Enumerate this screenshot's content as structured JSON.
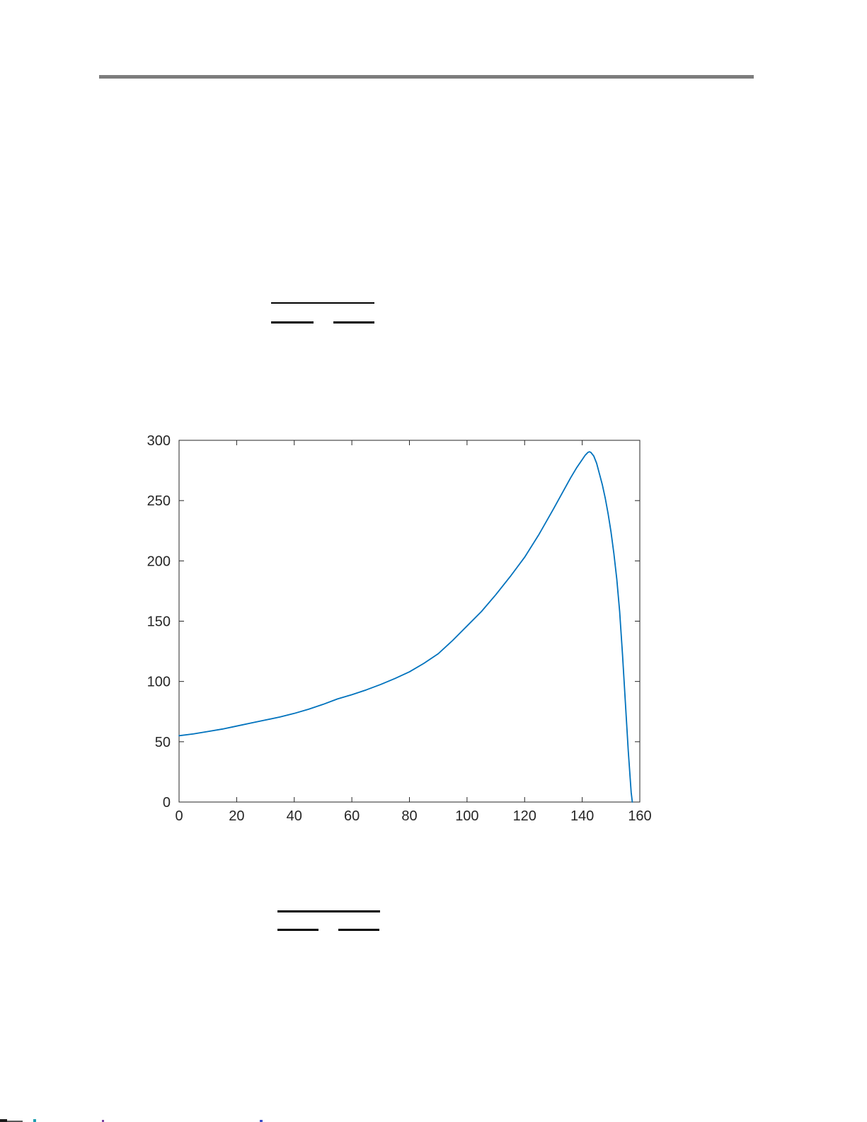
{
  "document": {
    "background_color": "#ffffff",
    "top_rule_color": "#7d7d7d"
  },
  "chart_data": {
    "type": "line",
    "title": "",
    "xlabel": "",
    "ylabel": "",
    "xlim": [
      0,
      160
    ],
    "ylim": [
      0,
      300
    ],
    "x_ticks": [
      0,
      20,
      40,
      60,
      80,
      100,
      120,
      140,
      160
    ],
    "y_ticks": [
      0,
      50,
      100,
      150,
      200,
      250,
      300
    ],
    "grid": false,
    "box": true,
    "legend": null,
    "line_color": "#0072BD",
    "axis_color": "#262626",
    "tick_label_color": "#262626",
    "series": [
      {
        "x": [
          0,
          5,
          10,
          15,
          20,
          25,
          30,
          35,
          40,
          45,
          50,
          55,
          60,
          65,
          70,
          75,
          80,
          85,
          90,
          95,
          100,
          105,
          110,
          115,
          120,
          125,
          130,
          133,
          136,
          138,
          140,
          141,
          142,
          142.5,
          143,
          144,
          145,
          146,
          147,
          148,
          149,
          150,
          151,
          152,
          153,
          154,
          155,
          156,
          157,
          157.4
        ],
        "y": [
          55,
          56.5,
          58.5,
          60.5,
          63,
          65.5,
          68,
          70.5,
          73.5,
          77,
          81,
          85.5,
          89,
          93,
          97.5,
          102.5,
          108,
          115,
          123,
          134,
          146,
          158,
          172,
          187,
          203,
          222,
          243,
          256,
          269,
          277,
          284,
          287.5,
          290,
          290.5,
          290,
          287,
          281,
          272,
          263,
          252,
          239,
          224,
          206,
          185,
          158,
          122,
          82,
          42,
          8,
          0
        ]
      }
    ],
    "peak_point": {
      "x": 142,
      "y": 290.5
    },
    "x_intercept": 157.4,
    "y_at_x0": 55
  }
}
